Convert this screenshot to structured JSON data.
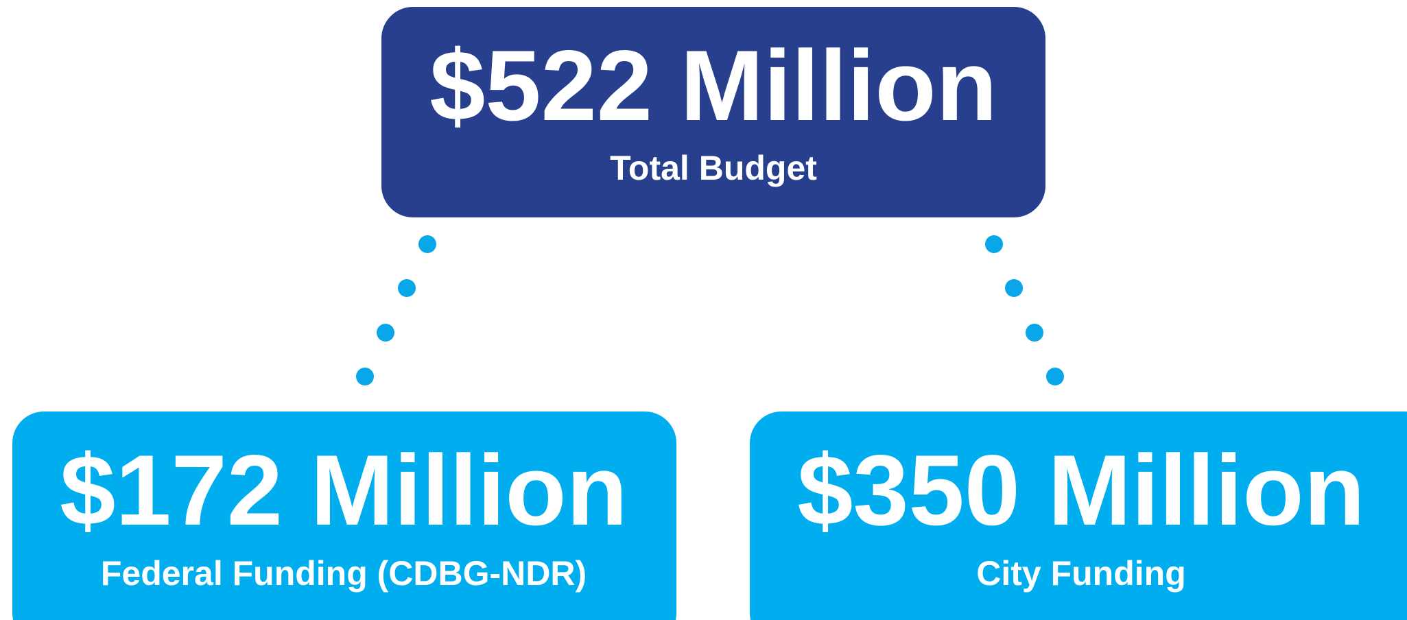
{
  "nodes": [
    {
      "amount": "$522 Million",
      "label": "Total Budget"
    },
    {
      "amount": "$172 Million",
      "label": "Federal Funding (CDBG-NDR)"
    },
    {
      "amount": "$350 Million",
      "label": "City Funding"
    }
  ]
}
